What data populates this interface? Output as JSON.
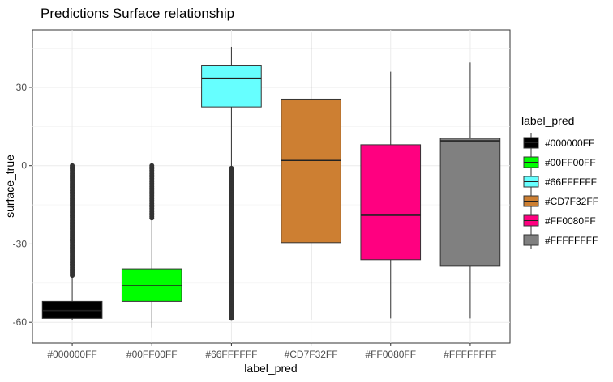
{
  "chart_data": {
    "type": "boxplot",
    "title": "Predictions Surface relationship",
    "xlabel": "label_pred",
    "ylabel": "surface_true",
    "ylim": [
      -68,
      52
    ],
    "yticks": [
      -60,
      -30,
      0,
      30
    ],
    "grid": true,
    "legend": {
      "title": "label_pred",
      "position": "right",
      "entries": [
        "#000000FF",
        "#00FF00FF",
        "#66FFFFFF",
        "#CD7F32FF",
        "#FF0080FF",
        "#FFFFFFFF"
      ]
    },
    "categories": [
      "#000000FF",
      "#00FF00FF",
      "#66FFFFFF",
      "#CD7F32FF",
      "#FF0080FF",
      "#FFFFFFFF"
    ],
    "boxes": [
      {
        "label": "#000000FF",
        "fill": "#000000",
        "whisker_low": -59,
        "q1": -58.5,
        "median": -55.5,
        "q3": -52,
        "whisker_high": -42,
        "outlier_range": [
          -42,
          0
        ]
      },
      {
        "label": "#00FF00FF",
        "fill": "#00FF00",
        "whisker_low": -62,
        "q1": -52,
        "median": -46,
        "q3": -39.5,
        "whisker_high": -20,
        "outlier_range": [
          -20,
          0
        ]
      },
      {
        "label": "#66FFFFFF",
        "fill": "#66FFFF",
        "whisker_low": -1,
        "q1": 22.5,
        "median": 33.5,
        "q3": 38.5,
        "whisker_high": 45.5,
        "outlier_range": [
          -58.5,
          -1
        ]
      },
      {
        "label": "#CD7F32FF",
        "fill": "#CD7F32",
        "whisker_low": -59,
        "q1": -29.5,
        "median": 2,
        "q3": 25.5,
        "whisker_high": 51
      },
      {
        "label": "#FF0080FF",
        "fill": "#FF0080",
        "whisker_low": -58.5,
        "q1": -36,
        "median": -19,
        "q3": 8,
        "whisker_high": 36
      },
      {
        "label": "#FFFFFFFF",
        "fill": "#808080",
        "whisker_low": -58.5,
        "q1": -38.5,
        "median": 9.5,
        "q3": 10.5,
        "whisker_high": 39.5
      }
    ]
  }
}
